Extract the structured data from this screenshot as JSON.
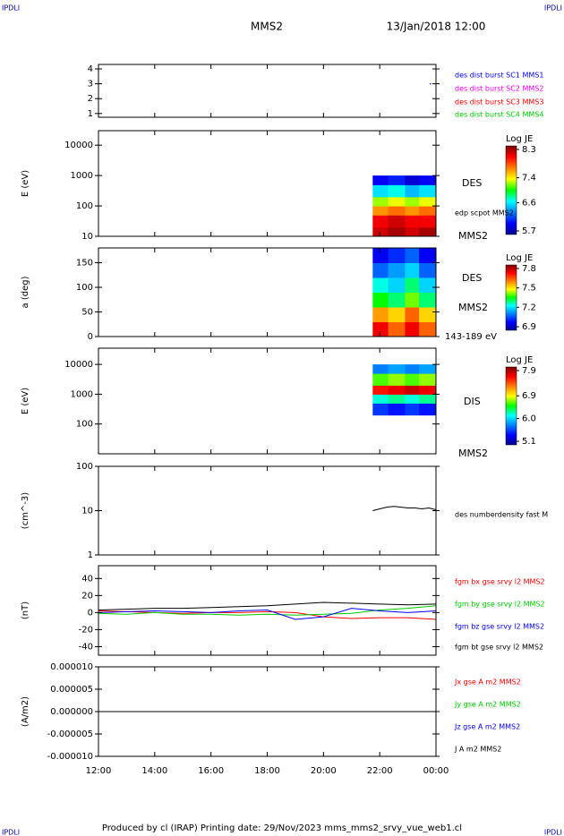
{
  "header": {
    "left": "IPDLI",
    "right": "IPDLI",
    "title": "MMS2",
    "date": "13/Jan/2018 12:00"
  },
  "footer": {
    "text": "Produced by cl (IRAP)   Printing date: 29/Nov/2023   mms_mms2_srvy_vue_web1.cl",
    "left": "IPDLI",
    "right": "IPDLI"
  },
  "chart_data": [
    {
      "type": "scatter",
      "ylim": [
        0.75,
        4.3
      ],
      "yticks": [
        1,
        2,
        3,
        4
      ],
      "series": [
        {
          "name": "des dist burst SC1 MMS1",
          "color": "#0000ff",
          "x": [
            23.8
          ],
          "values": [
            3.0
          ]
        },
        {
          "name": "des dist burst SC2 MMS2",
          "color": "#ff00ff",
          "x": [],
          "values": []
        },
        {
          "name": "des dist burst SC3 MMS3",
          "color": "#ff0000",
          "x": [],
          "values": []
        },
        {
          "name": "des dist burst SC4 MMS4",
          "color": "#00cc00",
          "x": [],
          "values": []
        }
      ]
    },
    {
      "type": "spectrogram",
      "ylabel": "E (eV)",
      "log": true,
      "ylim": [
        10,
        30000
      ],
      "yticks": [
        10,
        100,
        1000,
        10000
      ],
      "annotations": [
        "DES",
        "edp scpot MMS2",
        "MMS2"
      ],
      "colorbar": {
        "label": "Log JE",
        "lim": [
          5.7,
          8.3
        ],
        "ticks": [
          5.7,
          6.6,
          7.4,
          8.3
        ]
      },
      "xbins": [
        21.75,
        22.3,
        22.9,
        23.4,
        24
      ],
      "ybins": [
        10,
        20,
        50,
        100,
        200,
        500,
        1000
      ],
      "z": [
        [
          8.1,
          8.2,
          8.1,
          8.2
        ],
        [
          8.0,
          8.1,
          8.0,
          8.0
        ],
        [
          7.6,
          7.7,
          7.6,
          7.7
        ],
        [
          7.2,
          7.3,
          7.2,
          7.3
        ],
        [
          6.6,
          6.7,
          6.5,
          6.6
        ],
        [
          6.0,
          6.1,
          5.9,
          6.0
        ]
      ]
    },
    {
      "type": "spectrogram",
      "ylabel": "a (deg)",
      "ylim": [
        0,
        180
      ],
      "yticks": [
        0,
        50,
        100,
        150
      ],
      "annotations": [
        "DES",
        "MMS2",
        "143-189 eV"
      ],
      "colorbar": {
        "label": "Log JE",
        "lim": [
          6.9,
          7.8
        ],
        "ticks": [
          6.9,
          7.2,
          7.5,
          7.8
        ]
      },
      "xbins": [
        21.75,
        22.3,
        22.9,
        23.4,
        24
      ],
      "ybins": [
        0,
        30,
        60,
        90,
        120,
        150,
        180
      ],
      "z": [
        [
          7.7,
          7.6,
          7.7,
          7.6
        ],
        [
          7.55,
          7.5,
          7.6,
          7.5
        ],
        [
          7.35,
          7.3,
          7.4,
          7.3
        ],
        [
          7.25,
          7.2,
          7.3,
          7.2
        ],
        [
          7.1,
          7.15,
          7.2,
          7.1
        ],
        [
          7.0,
          7.05,
          7.1,
          7.0
        ]
      ]
    },
    {
      "type": "spectrogram",
      "ylabel": "E (eV)",
      "log": true,
      "ylim": [
        10,
        35000
      ],
      "yticks": [
        100,
        1000,
        10000
      ],
      "annotations": [
        "DIS",
        "MMS2"
      ],
      "colorbar": {
        "label": "Log JE",
        "lim": [
          5.1,
          7.9
        ],
        "ticks": [
          5.1,
          {
            "value": 6.0,
            "label": "6.0"
          },
          6.9,
          7.9
        ]
      },
      "xbins": [
        21.75,
        22.3,
        22.9,
        23.4,
        24
      ],
      "ybins": [
        200,
        500,
        1000,
        2000,
        5000,
        10000
      ],
      "z": [
        [
          5.6,
          5.5,
          5.6,
          5.5
        ],
        [
          6.2,
          6.3,
          6.2,
          6.3
        ],
        [
          7.5,
          7.6,
          7.7,
          7.6
        ],
        [
          6.6,
          6.7,
          6.6,
          6.7
        ],
        [
          5.8,
          5.9,
          5.8,
          5.9
        ]
      ]
    },
    {
      "type": "line",
      "ylabel": "(cm^-3)",
      "log": true,
      "ylim": [
        1,
        100
      ],
      "yticks": [
        1,
        10,
        100
      ],
      "x": [
        21.75,
        22,
        22.25,
        22.5,
        22.75,
        23,
        23.25,
        23.5,
        23.75,
        24
      ],
      "series": [
        {
          "name": "des numberdensity fast M",
          "color": "#000000",
          "values": [
            10,
            11,
            12,
            12.5,
            12,
            11.5,
            11.5,
            11,
            11.5,
            10.5
          ]
        }
      ]
    },
    {
      "type": "line",
      "ylabel": "(nT)",
      "ylim": [
        -50,
        55
      ],
      "yticks": [
        -40,
        -20,
        0,
        20,
        40
      ],
      "x": [
        12,
        13,
        14,
        15,
        16,
        17,
        18,
        19,
        20,
        21,
        22,
        23,
        24
      ],
      "series": [
        {
          "name": "fgm bx gse srvy l2 MMS2",
          "color": "#ff0000",
          "values": [
            2,
            1,
            0,
            -1,
            0,
            0,
            1,
            0,
            -5,
            -7,
            -6,
            -6,
            -8
          ]
        },
        {
          "name": "fgm by gse srvy l2 MMS2",
          "color": "#00cc00",
          "values": [
            -1,
            -2,
            0,
            -2,
            -2,
            -3,
            -2,
            -3,
            -2,
            -1,
            3,
            5,
            8
          ]
        },
        {
          "name": "fgm bz gse srvy l2 MMS2",
          "color": "#0000ff",
          "values": [
            0,
            1,
            2,
            1,
            0,
            2,
            3,
            -8,
            -5,
            5,
            2,
            0,
            2
          ]
        },
        {
          "name": "fgm bt gse srvy l2 MMS2",
          "color": "#000000",
          "values": [
            3,
            4,
            5,
            5,
            6,
            7,
            8,
            10,
            12,
            11,
            10,
            9,
            10
          ]
        }
      ]
    },
    {
      "type": "line",
      "ylabel": "(A/m2)",
      "ylim": [
        -1e-05,
        1e-05
      ],
      "yticks": [
        {
          "value": -1e-05,
          "label": "-0.000010"
        },
        {
          "value": -5e-06,
          "label": "-0.000005"
        },
        {
          "value": 0,
          "label": "0.000000"
        },
        {
          "value": 5e-06,
          "label": "0.000005"
        },
        {
          "value": 1e-05,
          "label": "0.000010"
        }
      ],
      "xlim": [
        12,
        24
      ],
      "xticks": [
        {
          "value": 12,
          "label": "12:00"
        },
        {
          "value": 14,
          "label": "14:00"
        },
        {
          "value": 16,
          "label": "16:00"
        },
        {
          "value": 18,
          "label": "18:00"
        },
        {
          "value": 20,
          "label": "20:00"
        },
        {
          "value": 22,
          "label": "22:00"
        },
        {
          "value": 24,
          "label": "00:00"
        }
      ],
      "x": [
        12,
        14,
        16,
        18,
        20,
        22,
        24
      ],
      "series": [
        {
          "name": "Jx gse A m2 MMS2",
          "color": "#ff0000",
          "values": [
            0,
            0,
            0,
            0,
            0,
            0,
            0
          ]
        },
        {
          "name": "Jy gse A m2 MMS2",
          "color": "#00cc00",
          "values": [
            0,
            0,
            0,
            0,
            0,
            0,
            0
          ]
        },
        {
          "name": "Jz gse A m2 MMS2",
          "color": "#0000ff",
          "values": [
            0,
            0,
            0,
            0,
            0,
            0,
            0
          ]
        },
        {
          "name": "J A m2 MMS2",
          "color": "#000000",
          "values": [
            0,
            0,
            0,
            0,
            0,
            0,
            0
          ]
        }
      ]
    }
  ]
}
